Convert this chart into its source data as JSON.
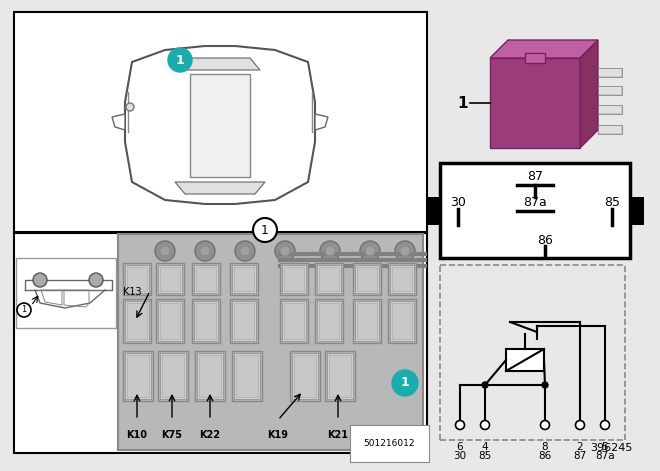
{
  "part_number": "396245",
  "fuse_box_code": "501216012",
  "relay_color": "#9b3d7a",
  "relay_color_light": "#c060a0",
  "relay_color_dark": "#7a2060",
  "relay_top_color": "#b04888",
  "relay_right_color": "#883060",
  "teal_color": "#1aadad",
  "bg_color": "#e8e8e8",
  "white": "#ffffff",
  "black": "#000000",
  "panel_edge": "#555555",
  "car_line": "#666666",
  "fuse_bg": "#d0d0d0",
  "slot_face": "#c0c0c0",
  "slot_edge": "#909090",
  "slot_inner": "#d8d8d8",
  "gray_dark": "#555555",
  "metal_color": "#b0b0b0",
  "pin_numbers_top": [
    "6",
    "4",
    "8",
    "2",
    "5"
  ],
  "pin_numbers_bot": [
    "30",
    "85",
    "86",
    "87",
    "87a"
  ]
}
